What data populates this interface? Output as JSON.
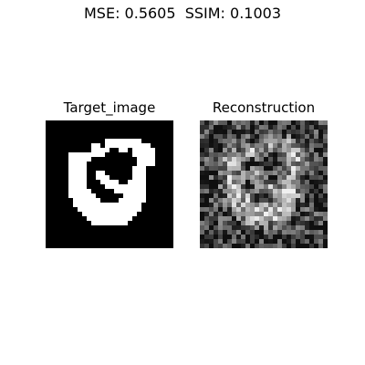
{
  "suptitle": "MSE: 0.5605  SSIM: 0.1003",
  "panels": {
    "target_title": "Target_image",
    "reconstruction_title": "Reconstruction"
  },
  "image_grid": {
    "rows": 28,
    "cols": 28,
    "target_colors": {
      "background": "#000000",
      "foreground": "#ffffff"
    }
  }
}
